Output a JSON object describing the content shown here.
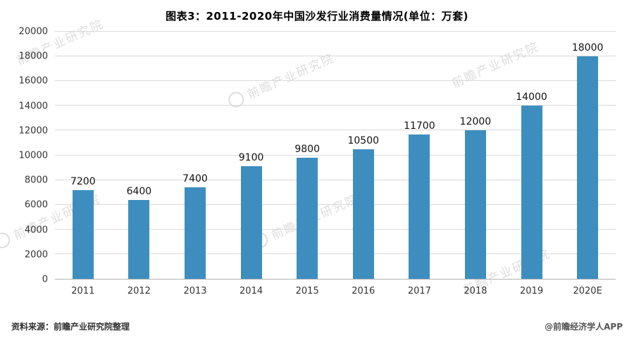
{
  "chart_data": {
    "type": "bar",
    "title": "图表3：2011-2020年中国沙发行业消费量情况(单位：万套)",
    "categories": [
      "2011",
      "2012",
      "2013",
      "2014",
      "2015",
      "2016",
      "2017",
      "2018",
      "2019",
      "2020E"
    ],
    "values": [
      7200,
      6400,
      7400,
      9100,
      9800,
      10500,
      11700,
      12000,
      14000,
      18000
    ],
    "xlabel": "",
    "ylabel": "",
    "ylim": [
      0,
      20000
    ],
    "ytick_step": 2000,
    "bar_color": "#3D8EBF",
    "grid": true,
    "legend_position": "none"
  },
  "footer": {
    "source": "资料来源：前瞻产业研究院整理",
    "credit": "@前瞻经济学人APP"
  },
  "watermark": {
    "text": "前瞻产业研究院",
    "icon": "logo-circle"
  }
}
